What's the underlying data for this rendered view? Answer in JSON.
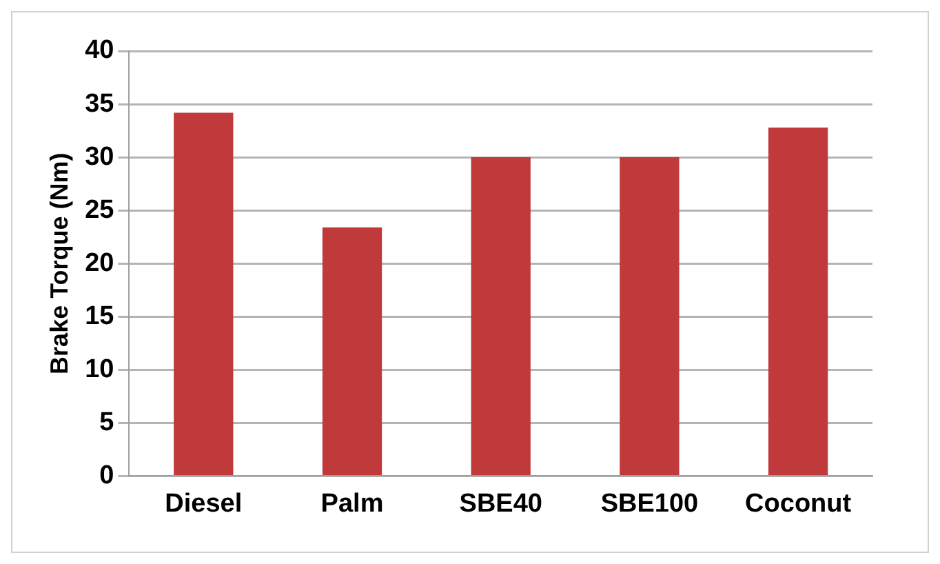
{
  "chart_data": {
    "type": "bar",
    "ylabel": "Brake Torque (Nm)",
    "categories": [
      "Diesel",
      "Palm",
      "SBE40",
      "SBE100",
      "Coconut"
    ],
    "values": [
      34.2,
      23.4,
      30,
      30,
      32.8
    ],
    "color": "#c0393b",
    "ylim": [
      0,
      40
    ],
    "yticks": [
      0,
      5,
      10,
      15,
      20,
      25,
      30,
      35,
      40
    ],
    "grid": "y",
    "legend": false
  }
}
